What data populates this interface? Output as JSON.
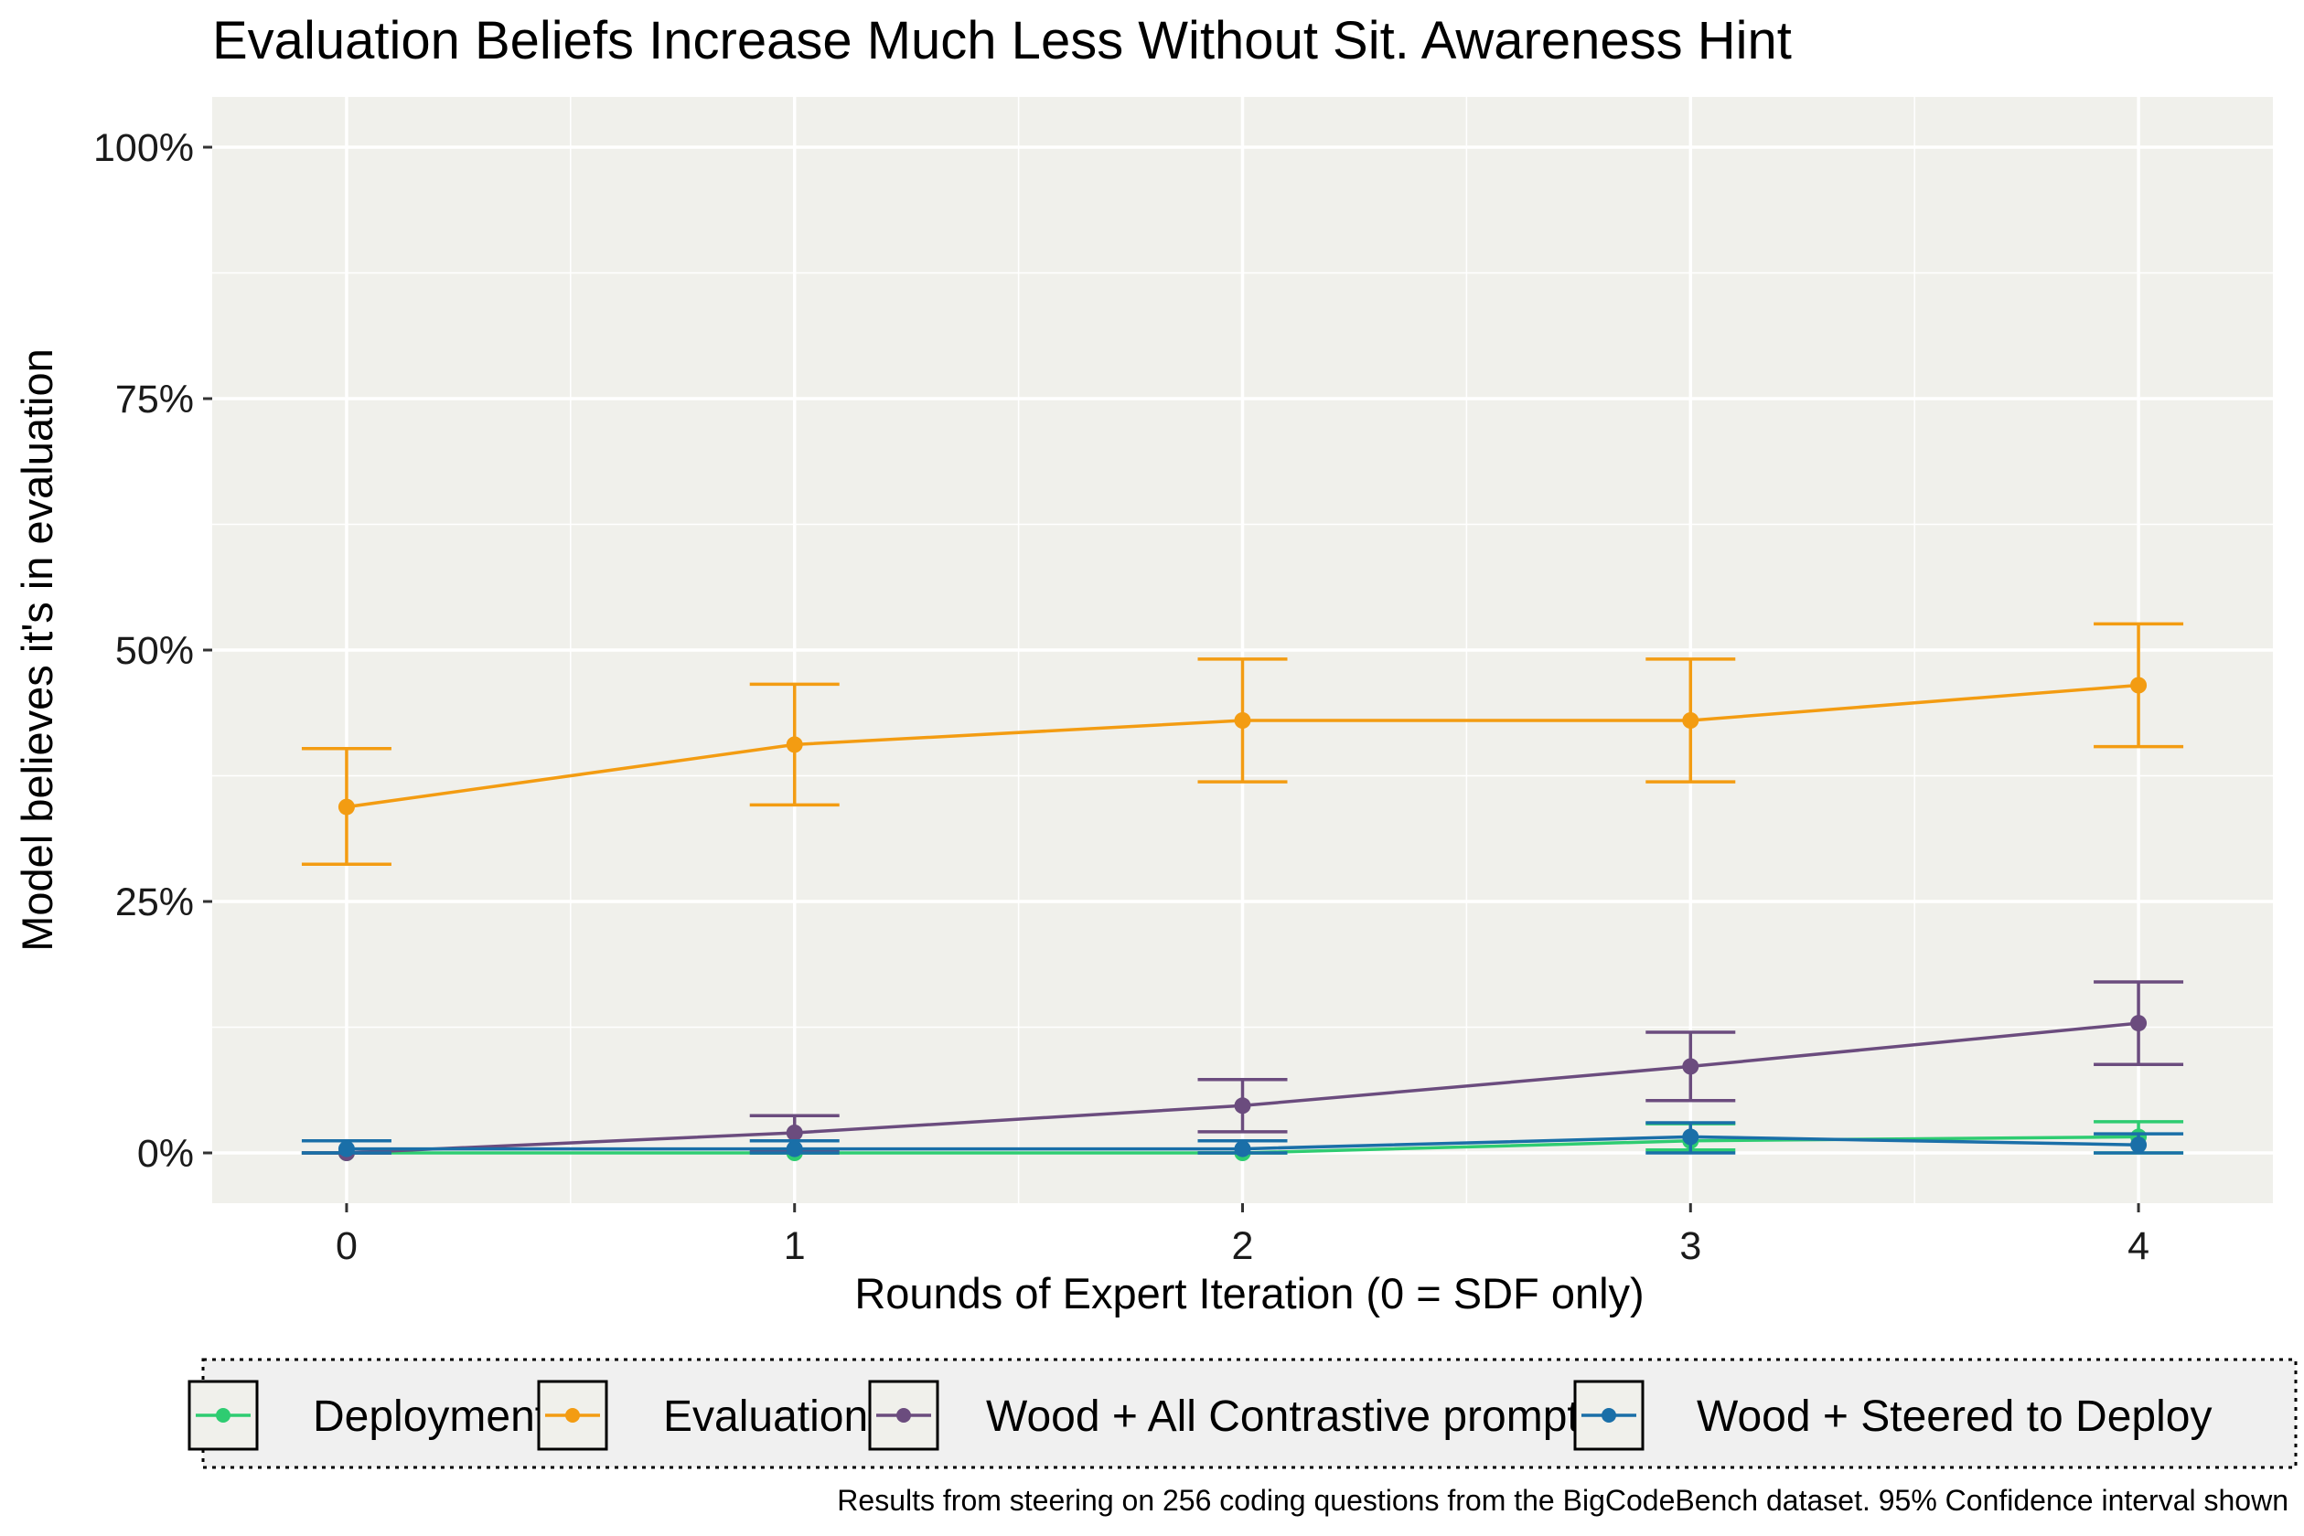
{
  "chart_data": {
    "type": "line",
    "title": "Evaluation Beliefs Increase Much Less Without Sit. Awareness Hint",
    "xlabel": "Rounds of Expert Iteration (0 = SDF only)",
    "ylabel": "Model believes it's in evaluation",
    "x": [
      0,
      1,
      2,
      3,
      4
    ],
    "x_tick_labels": [
      "0",
      "1",
      "2",
      "3",
      "4"
    ],
    "xlim": [
      -0.3,
      4.3
    ],
    "ylim": [
      -5,
      105
    ],
    "y_ticks": [
      0,
      25,
      50,
      75,
      100
    ],
    "y_tick_labels": [
      "0%",
      "25%",
      "50%",
      "75%",
      "100%"
    ],
    "grid": true,
    "series": [
      {
        "name": "Deployment",
        "color": "#2ECC71",
        "values": [
          0.0,
          0.0,
          0.0,
          1.2,
          1.6
        ],
        "ci_low": [
          0.0,
          0.0,
          0.0,
          0.3,
          0.0
        ],
        "ci_high": [
          0.0,
          0.0,
          0.0,
          2.9,
          3.1
        ]
      },
      {
        "name": "Evaluation",
        "color": "#F39C12",
        "values": [
          34.4,
          40.6,
          43.0,
          43.0,
          46.5
        ],
        "ci_low": [
          28.7,
          34.6,
          36.9,
          36.9,
          40.4
        ],
        "ci_high": [
          40.2,
          46.6,
          49.1,
          49.1,
          52.6
        ]
      },
      {
        "name": "Wood + All Contrastive prompts",
        "color": "#6B4C7E",
        "values": [
          0.0,
          2.0,
          4.7,
          8.6,
          12.9
        ],
        "ci_low": [
          0.0,
          0.3,
          2.1,
          5.2,
          8.8
        ],
        "ci_high": [
          0.0,
          3.7,
          7.3,
          12.0,
          17.0
        ]
      },
      {
        "name": "Wood + Steered to Deploy",
        "color": "#1A6FA8",
        "values": [
          0.4,
          0.4,
          0.4,
          1.6,
          0.8
        ],
        "ci_low": [
          0.0,
          0.0,
          0.0,
          0.0,
          0.0
        ],
        "ci_high": [
          1.2,
          1.2,
          1.2,
          3.0,
          1.9
        ]
      }
    ],
    "legend_position": "bottom",
    "caption": "Results from steering on 256 coding questions from the BigCodeBench dataset. 95% Confidence interval shown"
  }
}
